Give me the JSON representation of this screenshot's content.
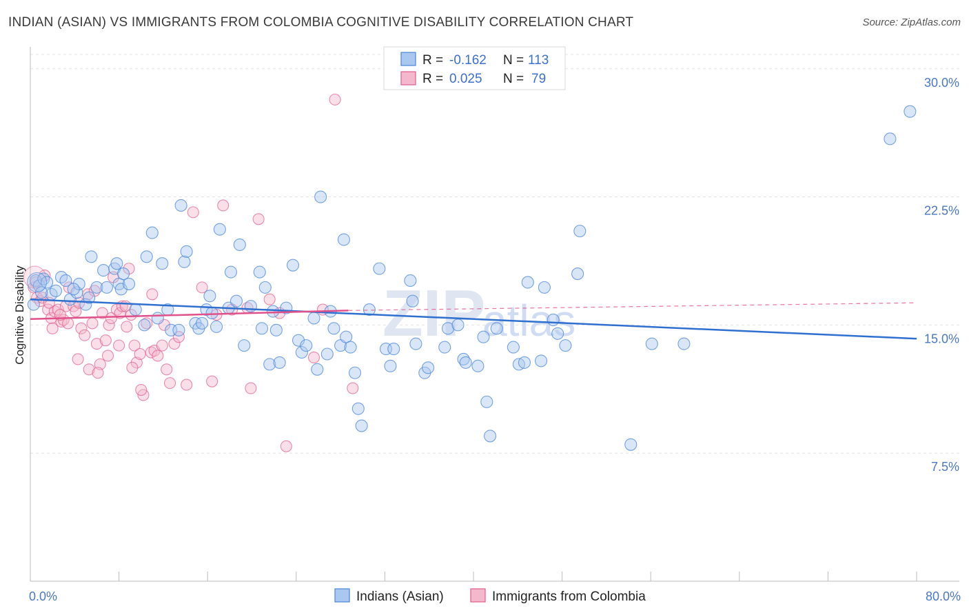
{
  "title": "INDIAN (ASIAN) VS IMMIGRANTS FROM COLOMBIA COGNITIVE DISABILITY CORRELATION CHART",
  "source": "Source: ZipAtlas.com",
  "watermark": {
    "zip": "ZIP",
    "atlas": "atlas"
  },
  "colors": {
    "blue": "#4a86d8",
    "blue_fill": "#aac8ef",
    "pink": "#e05c8a",
    "pink_fill": "#f4b8cc",
    "blue_line": "#2f6fd0",
    "pink_line": "#e0508a"
  },
  "legend": {
    "rows": [
      {
        "r_label": "R =",
        "r_value": "-0.162",
        "n_label": "N =",
        "n_value": "113"
      },
      {
        "r_label": "R =",
        "r_value": "0.025",
        "n_label": "N =",
        "n_value": "79"
      }
    ]
  },
  "bottom_legend": [
    "Indians (Asian)",
    "Immigrants from Colombia"
  ],
  "chart_data": {
    "type": "scatter",
    "title": "INDIAN (ASIAN) VS IMMIGRANTS FROM COLOMBIA COGNITIVE DISABILITY CORRELATION CHART",
    "xlabel": "",
    "ylabel": "Cognitive Disability",
    "xlim": [
      0,
      80
    ],
    "ylim": [
      0,
      31
    ],
    "x_tick_labels": [
      "0.0%",
      "80.0%"
    ],
    "y_ticks": [
      7.5,
      15.0,
      22.5,
      30.0
    ],
    "y_tick_labels": [
      "7.5%",
      "15.0%",
      "22.5%",
      "30.0%"
    ],
    "grid": true,
    "legend_position": "top-center",
    "series": [
      {
        "name": "Indians (Asian)",
        "r": -0.162,
        "n": 113,
        "trend": {
          "x": [
            0,
            80
          ],
          "y": [
            16.5,
            14.2
          ]
        },
        "points": [
          [
            0.5,
            17.6
          ],
          [
            0.8,
            17.3
          ],
          [
            1.2,
            17.7
          ],
          [
            1.5,
            17.5
          ],
          [
            1.9,
            16.8
          ],
          [
            2.3,
            17.0
          ],
          [
            2.8,
            17.8
          ],
          [
            3.2,
            17.6
          ],
          [
            3.6,
            16.5
          ],
          [
            4.2,
            16.9
          ],
          [
            4.4,
            17.4
          ],
          [
            5.0,
            16.2
          ],
          [
            5.3,
            16.6
          ],
          [
            5.5,
            19.0
          ],
          [
            6.0,
            17.2
          ],
          [
            6.6,
            18.2
          ],
          [
            6.9,
            17.2
          ],
          [
            7.6,
            18.3
          ],
          [
            7.8,
            18.6
          ],
          [
            8.0,
            17.4
          ],
          [
            8.2,
            17.1
          ],
          [
            8.4,
            18.0
          ],
          [
            8.9,
            17.4
          ],
          [
            9.5,
            15.9
          ],
          [
            10.3,
            15.0
          ],
          [
            10.5,
            19.0
          ],
          [
            11.0,
            20.4
          ],
          [
            11.5,
            15.4
          ],
          [
            11.9,
            18.6
          ],
          [
            12.4,
            15.9
          ],
          [
            12.7,
            14.7
          ],
          [
            13.4,
            14.7
          ],
          [
            13.6,
            22.0
          ],
          [
            13.9,
            18.7
          ],
          [
            14.1,
            19.3
          ],
          [
            14.9,
            15.1
          ],
          [
            15.2,
            14.8
          ],
          [
            15.5,
            15.1
          ],
          [
            15.9,
            15.9
          ],
          [
            16.2,
            16.7
          ],
          [
            16.4,
            15.7
          ],
          [
            16.8,
            14.9
          ],
          [
            17.1,
            20.6
          ],
          [
            17.9,
            16.0
          ],
          [
            18.1,
            18.1
          ],
          [
            18.6,
            16.4
          ],
          [
            18.9,
            19.7
          ],
          [
            19.3,
            13.8
          ],
          [
            19.9,
            16.1
          ],
          [
            20.9,
            14.8
          ],
          [
            20.7,
            18.1
          ],
          [
            21.2,
            17.2
          ],
          [
            21.6,
            12.7
          ],
          [
            21.9,
            15.8
          ],
          [
            22.2,
            14.7
          ],
          [
            22.5,
            12.8
          ],
          [
            23.1,
            16.0
          ],
          [
            23.7,
            18.5
          ],
          [
            24.2,
            14.1
          ],
          [
            24.5,
            13.4
          ],
          [
            24.9,
            13.8
          ],
          [
            25.6,
            15.4
          ],
          [
            25.9,
            12.4
          ],
          [
            26.2,
            22.5
          ],
          [
            26.8,
            13.3
          ],
          [
            27.1,
            15.8
          ],
          [
            27.4,
            14.8
          ],
          [
            28.0,
            13.8
          ],
          [
            28.3,
            20.0
          ],
          [
            28.5,
            14.3
          ],
          [
            28.9,
            13.7
          ],
          [
            29.3,
            12.2
          ],
          [
            29.6,
            10.1
          ],
          [
            29.9,
            9.1
          ],
          [
            30.6,
            15.9
          ],
          [
            31.5,
            18.3
          ],
          [
            32.1,
            13.6
          ],
          [
            32.5,
            12.6
          ],
          [
            32.8,
            13.6
          ],
          [
            34.3,
            17.6
          ],
          [
            34.5,
            16.4
          ],
          [
            34.8,
            13.9
          ],
          [
            35.6,
            12.2
          ],
          [
            35.9,
            12.5
          ],
          [
            37.4,
            13.7
          ],
          [
            37.7,
            14.8
          ],
          [
            38.6,
            15.0
          ],
          [
            39.1,
            13.0
          ],
          [
            39.3,
            12.8
          ],
          [
            40.4,
            12.6
          ],
          [
            40.9,
            14.3
          ],
          [
            41.2,
            10.5
          ],
          [
            41.5,
            8.5
          ],
          [
            42.1,
            14.8
          ],
          [
            43.6,
            13.7
          ],
          [
            44.1,
            12.7
          ],
          [
            44.6,
            12.8
          ],
          [
            44.9,
            17.5
          ],
          [
            46.1,
            12.9
          ],
          [
            46.4,
            17.2
          ],
          [
            47.2,
            15.3
          ],
          [
            47.6,
            14.5
          ],
          [
            48.3,
            13.8
          ],
          [
            49.6,
            20.5
          ],
          [
            49.4,
            18.0
          ],
          [
            54.2,
            8.0
          ],
          [
            56.1,
            13.9
          ],
          [
            59.0,
            13.9
          ],
          [
            77.6,
            25.9
          ],
          [
            79.4,
            27.5
          ],
          [
            0.3,
            16.2
          ],
          [
            1.0,
            16.9
          ],
          [
            3.9,
            17.1
          ]
        ]
      },
      {
        "name": "Immigrants from Colombia",
        "r": 0.025,
        "n": 79,
        "trend": {
          "x": [
            0,
            28.7
          ],
          "y": [
            15.35,
            15.85
          ]
        },
        "trend_dashed": {
          "x": [
            28.7,
            80
          ],
          "y": [
            15.85,
            16.3
          ]
        },
        "points": [
          [
            0.3,
            17.2
          ],
          [
            0.6,
            16.6
          ],
          [
            0.9,
            16.4
          ],
          [
            1.1,
            16.6
          ],
          [
            1.3,
            17.9
          ],
          [
            1.6,
            15.9
          ],
          [
            1.9,
            15.4
          ],
          [
            2.2,
            15.8
          ],
          [
            2.5,
            15.9
          ],
          [
            2.8,
            15.2
          ],
          [
            3.0,
            15.3
          ],
          [
            3.2,
            16.1
          ],
          [
            3.5,
            17.2
          ],
          [
            3.9,
            16.1
          ],
          [
            4.1,
            15.8
          ],
          [
            4.4,
            16.3
          ],
          [
            4.6,
            14.8
          ],
          [
            4.9,
            14.4
          ],
          [
            5.2,
            16.8
          ],
          [
            5.6,
            15.1
          ],
          [
            6.0,
            13.9
          ],
          [
            6.3,
            12.7
          ],
          [
            6.5,
            15.7
          ],
          [
            6.8,
            14.1
          ],
          [
            7.1,
            15.0
          ],
          [
            7.3,
            15.4
          ],
          [
            7.5,
            17.8
          ],
          [
            7.8,
            15.9
          ],
          [
            8.1,
            15.7
          ],
          [
            8.3,
            16.1
          ],
          [
            8.6,
            16.1
          ],
          [
            8.9,
            18.3
          ],
          [
            9.1,
            15.6
          ],
          [
            9.4,
            13.8
          ],
          [
            9.6,
            12.8
          ],
          [
            9.9,
            13.3
          ],
          [
            10.2,
            10.9
          ],
          [
            10.5,
            15.1
          ],
          [
            10.9,
            13.4
          ],
          [
            11.2,
            13.5
          ],
          [
            11.5,
            13.2
          ],
          [
            11.9,
            13.8
          ],
          [
            12.3,
            12.4
          ],
          [
            12.6,
            11.6
          ],
          [
            13.0,
            13.9
          ],
          [
            13.4,
            14.3
          ],
          [
            14.1,
            11.5
          ],
          [
            14.7,
            21.6
          ],
          [
            15.5,
            17.2
          ],
          [
            16.4,
            11.7
          ],
          [
            16.8,
            15.6
          ],
          [
            17.4,
            22.0
          ],
          [
            18.2,
            15.9
          ],
          [
            19.6,
            16.0
          ],
          [
            19.9,
            11.3
          ],
          [
            20.6,
            21.2
          ],
          [
            21.6,
            16.5
          ],
          [
            22.5,
            15.7
          ],
          [
            23.1,
            7.9
          ],
          [
            25.6,
            13.1
          ],
          [
            26.4,
            15.9
          ],
          [
            27.5,
            28.2
          ],
          [
            29.1,
            11.3
          ],
          [
            2.0,
            14.8
          ],
          [
            5.3,
            12.4
          ],
          [
            6.1,
            12.2
          ],
          [
            8.0,
            13.8
          ],
          [
            9.2,
            12.5
          ],
          [
            10.0,
            11.2
          ],
          [
            11.0,
            16.8
          ],
          [
            3.4,
            15.1
          ],
          [
            4.3,
            13.0
          ],
          [
            7.0,
            13.2
          ],
          [
            12.1,
            15.0
          ],
          [
            0.5,
            17.5
          ],
          [
            1.7,
            16.3
          ],
          [
            2.7,
            15.6
          ],
          [
            5.8,
            17.0
          ],
          [
            8.7,
            14.9
          ]
        ]
      }
    ]
  }
}
